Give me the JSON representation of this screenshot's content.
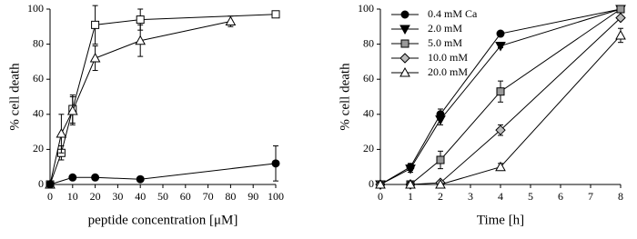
{
  "chart_data": [
    {
      "type": "line",
      "xlabel": "peptide concentration [μM]",
      "ylabel": "% cell death",
      "xlim": [
        0,
        100
      ],
      "xticks": [
        0,
        10,
        20,
        30,
        40,
        50,
        60,
        70,
        80,
        90,
        100
      ],
      "ylim": [
        0,
        100
      ],
      "yticks": [
        0,
        20,
        40,
        60,
        80,
        100
      ],
      "series": [
        {
          "marker": "square",
          "color": "#ffffff",
          "x": [
            0,
            5,
            10,
            20,
            40,
            100
          ],
          "values": [
            0,
            18,
            43,
            91,
            94,
            97
          ],
          "errors": [
            0,
            4,
            8,
            11,
            6,
            0
          ]
        },
        {
          "marker": "triangle-up",
          "color": "#ffffff",
          "x": [
            0,
            5,
            10,
            20,
            40,
            80
          ],
          "values": [
            0,
            29,
            42,
            72,
            82,
            93
          ],
          "errors": [
            0,
            11,
            8,
            7,
            9,
            3
          ]
        },
        {
          "marker": "circle",
          "color": "#000000",
          "x": [
            0,
            10,
            20,
            40,
            100
          ],
          "values": [
            0,
            4,
            4,
            3,
            12
          ],
          "errors": [
            0,
            1,
            1,
            1,
            10
          ]
        }
      ]
    },
    {
      "type": "line",
      "xlabel": "Time [h]",
      "ylabel": "% cell death",
      "xlim": [
        0,
        8
      ],
      "xticks": [
        0,
        1,
        2,
        3,
        4,
        5,
        6,
        7,
        8
      ],
      "ylim": [
        0,
        100
      ],
      "yticks": [
        0,
        20,
        40,
        60,
        80,
        100
      ],
      "series": [
        {
          "name": "0.4 mM Ca",
          "marker": "circle",
          "color": "#000000",
          "x": [
            0,
            1,
            2,
            4,
            8
          ],
          "values": [
            0,
            10,
            40,
            86,
            100
          ],
          "errors": [
            0,
            2,
            3,
            1,
            0
          ]
        },
        {
          "name": "2.0 mM",
          "marker": "triangle-down",
          "color": "#000000",
          "x": [
            0,
            1,
            2,
            4,
            8
          ],
          "values": [
            0,
            9,
            37,
            79,
            100
          ],
          "errors": [
            0,
            2,
            3,
            1,
            0
          ]
        },
        {
          "name": "5.0 mM",
          "marker": "square",
          "color": "#999999",
          "x": [
            0,
            1,
            2,
            4,
            8
          ],
          "values": [
            0,
            0,
            14,
            53,
            100
          ],
          "errors": [
            0,
            0,
            5,
            6,
            0
          ]
        },
        {
          "name": "10.0 mM",
          "marker": "diamond",
          "color": "#bbbbbb",
          "x": [
            0,
            1,
            2,
            4,
            8
          ],
          "values": [
            0,
            0,
            1,
            31,
            95
          ],
          "errors": [
            0,
            0,
            1,
            3,
            1
          ]
        },
        {
          "name": "20.0 mM",
          "marker": "triangle-up",
          "color": "#ffffff",
          "x": [
            0,
            1,
            2,
            4,
            8
          ],
          "values": [
            0,
            0,
            0,
            10,
            85
          ],
          "errors": [
            0,
            0,
            0,
            2,
            4
          ]
        }
      ]
    }
  ]
}
